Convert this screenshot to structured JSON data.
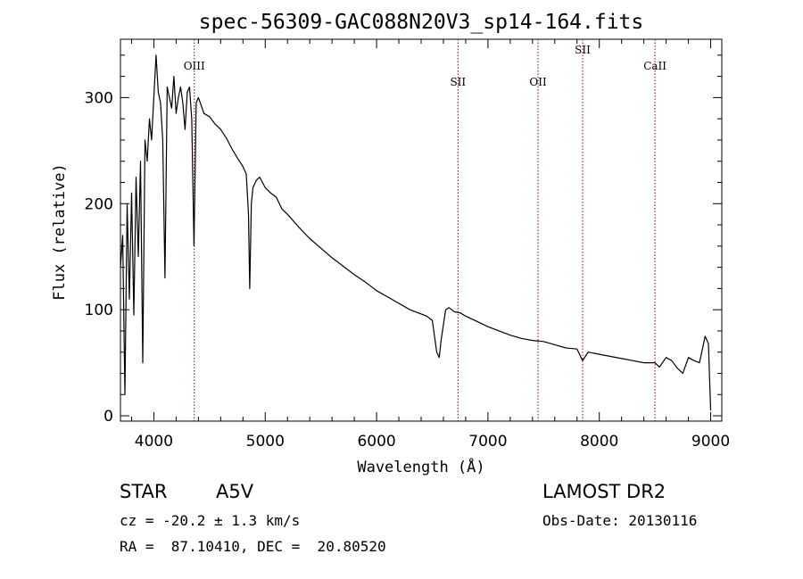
{
  "chart_data": {
    "type": "line",
    "title": "spec-56309-GAC088N20V3_sp14-164.fits",
    "xlabel": "Wavelength (Å)",
    "ylabel": "Flux (relative)",
    "xlim": [
      3700,
      9100
    ],
    "ylim": [
      -5,
      355
    ],
    "x_ticks": [
      4000,
      5000,
      6000,
      7000,
      8000,
      9000
    ],
    "y_ticks": [
      0,
      100,
      200,
      300
    ],
    "grid": false,
    "series": [
      {
        "color": "#000000",
        "x": [
          3700,
          3720,
          3740,
          3760,
          3780,
          3800,
          3820,
          3840,
          3860,
          3880,
          3900,
          3920,
          3940,
          3960,
          3980,
          4000,
          4020,
          4040,
          4060,
          4080,
          4100,
          4120,
          4140,
          4160,
          4180,
          4200,
          4220,
          4240,
          4260,
          4280,
          4300,
          4320,
          4340,
          4360,
          4380,
          4400,
          4450,
          4500,
          4550,
          4600,
          4650,
          4700,
          4750,
          4800,
          4830,
          4850,
          4861,
          4875,
          4890,
          4920,
          4950,
          5000,
          5050,
          5100,
          5150,
          5200,
          5300,
          5400,
          5500,
          5600,
          5700,
          5800,
          5900,
          6000,
          6100,
          6200,
          6300,
          6400,
          6450,
          6500,
          6540,
          6563,
          6580,
          6620,
          6650,
          6700,
          6750,
          6800,
          6900,
          7000,
          7100,
          7200,
          7300,
          7400,
          7500,
          7600,
          7700,
          7800,
          7850,
          7900,
          8000,
          8100,
          8200,
          8300,
          8400,
          8500,
          8540,
          8600,
          8650,
          8700,
          8750,
          8800,
          8850,
          8900,
          8950,
          8980,
          9000
        ],
        "y": [
          140,
          170,
          20,
          200,
          110,
          210,
          95,
          225,
          150,
          240,
          50,
          260,
          240,
          280,
          260,
          300,
          340,
          305,
          295,
          260,
          130,
          310,
          300,
          290,
          320,
          285,
          300,
          310,
          295,
          270,
          305,
          310,
          280,
          160,
          295,
          300,
          285,
          282,
          275,
          270,
          262,
          252,
          243,
          235,
          228,
          190,
          120,
          200,
          215,
          222,
          225,
          215,
          210,
          206,
          195,
          190,
          178,
          167,
          158,
          149,
          141,
          133,
          126,
          118,
          112,
          106,
          100,
          96,
          94,
          90,
          60,
          55,
          72,
          100,
          102,
          98,
          97,
          94,
          89,
          84,
          80,
          76,
          73,
          71,
          70,
          67,
          64,
          63,
          52,
          60,
          58,
          56,
          54,
          52,
          50,
          50,
          46,
          55,
          52,
          45,
          40,
          55,
          52,
          50,
          75,
          68,
          5
        ]
      }
    ],
    "annotations": [
      {
        "label": "OIII",
        "x": 4363
      },
      {
        "label": "SII",
        "x": 6731
      },
      {
        "label": "OII",
        "x": 7450
      },
      {
        "label": "SII",
        "x": 7850
      },
      {
        "label": "CaII",
        "x": 8500
      }
    ]
  },
  "info": {
    "object_class": "STAR",
    "subclass": "A5V",
    "survey": "LAMOST DR2",
    "cz": "cz = -20.2 ± 1.3 km/s",
    "obs_date": "Obs-Date: 20130116",
    "coords": "RA =  87.10410, DEC =  20.80520"
  },
  "colors": {
    "spectrum": "#000000",
    "line_marker": "#8b0000"
  }
}
